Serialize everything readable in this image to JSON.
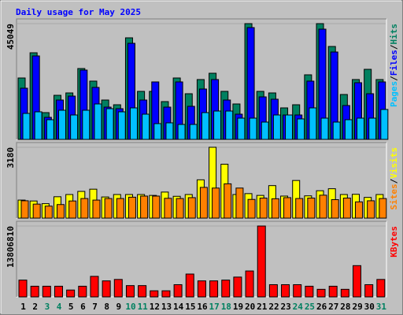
{
  "chart_data": [
    {
      "type": "bar",
      "title": "Daily usage for May 2025",
      "ylim": [
        0,
        45049
      ],
      "yticks": [
        45049
      ],
      "legend_separator": "/",
      "series": [
        {
          "name": "Hits",
          "color": "#008060",
          "values": [
            23900,
            33710,
            10420,
            17160,
            18080,
            27580,
            22680,
            15320,
            13480,
            39530,
            18690,
            18690,
            14710,
            23900,
            17770,
            23290,
            25740,
            18690,
            13790,
            45049,
            18690,
            18080,
            12260,
            13480,
            25130,
            45049,
            36160,
            17470,
            23290,
            27270,
            23290
          ]
        },
        {
          "name": "Files",
          "color": "#0000FF",
          "values": [
            19920,
            32480,
            8580,
            15320,
            16850,
            26970,
            20230,
            12560,
            11950,
            37390,
            15320,
            22370,
            12560,
            22370,
            12870,
            19610,
            23290,
            15320,
            9810,
            43510,
            16550,
            15630,
            9500,
            9500,
            22680,
            42900,
            34010,
            13180,
            22060,
            17770,
            22370
          ]
        },
        {
          "name": "Pages",
          "color": "#00C0FF",
          "values": [
            10110,
            10730,
            7660,
            11340,
            9500,
            11340,
            13790,
            11950,
            10730,
            12260,
            9810,
            6130,
            6440,
            5820,
            5820,
            10420,
            11030,
            11030,
            8270,
            8270,
            6740,
            9500,
            9500,
            7970,
            12260,
            8270,
            6740,
            7660,
            8270,
            8270,
            11650
          ]
        }
      ]
    },
    {
      "type": "bar",
      "ylim": [
        0,
        3180
      ],
      "yticks": [
        3180
      ],
      "legend_separator": "/",
      "series": [
        {
          "name": "Visits",
          "color": "#FFFF00",
          "values": [
            810,
            770,
            650,
            960,
            1060,
            1200,
            1300,
            950,
            1060,
            1060,
            1060,
            1020,
            1170,
            980,
            1060,
            1720,
            3180,
            2420,
            1060,
            1100,
            1020,
            1460,
            990,
            1690,
            1000,
            1230,
            1320,
            1060,
            1070,
            930,
            1060
          ]
        },
        {
          "name": "Sites",
          "color": "#FF8000",
          "values": [
            780,
            630,
            540,
            610,
            770,
            880,
            810,
            880,
            880,
            940,
            990,
            990,
            890,
            880,
            920,
            1380,
            1350,
            1540,
            1350,
            840,
            900,
            870,
            920,
            880,
            900,
            1030,
            830,
            900,
            730,
            780,
            880
          ]
        }
      ]
    },
    {
      "type": "bar",
      "ylim": [
        0,
        13806810
      ],
      "yticks": [
        13806810
      ],
      "categories": [
        "1",
        "2",
        "3",
        "4",
        "5",
        "6",
        "7",
        "8",
        "9",
        "10",
        "11",
        "12",
        "13",
        "14",
        "15",
        "16",
        "17",
        "18",
        "19",
        "20",
        "21",
        "22",
        "23",
        "24",
        "25",
        "26",
        "27",
        "28",
        "29",
        "30",
        "31"
      ],
      "label_colors": [
        "#000000",
        "#000000",
        "#008060",
        "#008060",
        "#000000",
        "#000000",
        "#000000",
        "#000000",
        "#000000",
        "#008060",
        "#008060",
        "#000000",
        "#000000",
        "#000000",
        "#000000",
        "#000000",
        "#008060",
        "#008060",
        "#000000",
        "#000000",
        "#000000",
        "#000000",
        "#000000",
        "#008060",
        "#008060",
        "#000000",
        "#000000",
        "#000000",
        "#000000",
        "#000000",
        "#008060"
      ],
      "series": [
        {
          "name": "KBytes",
          "color": "#FF0000",
          "values": [
            3270000,
            2080000,
            2080000,
            2080000,
            1340000,
            2080000,
            4000000,
            3120000,
            3400000,
            2200000,
            2200000,
            1190000,
            1190000,
            2380000,
            4450000,
            3120000,
            3120000,
            3270000,
            3860000,
            5050000,
            13806810,
            2380000,
            2380000,
            2380000,
            2080000,
            1480000,
            2080000,
            1480000,
            6090000,
            2380000,
            3400000
          ]
        }
      ]
    }
  ]
}
